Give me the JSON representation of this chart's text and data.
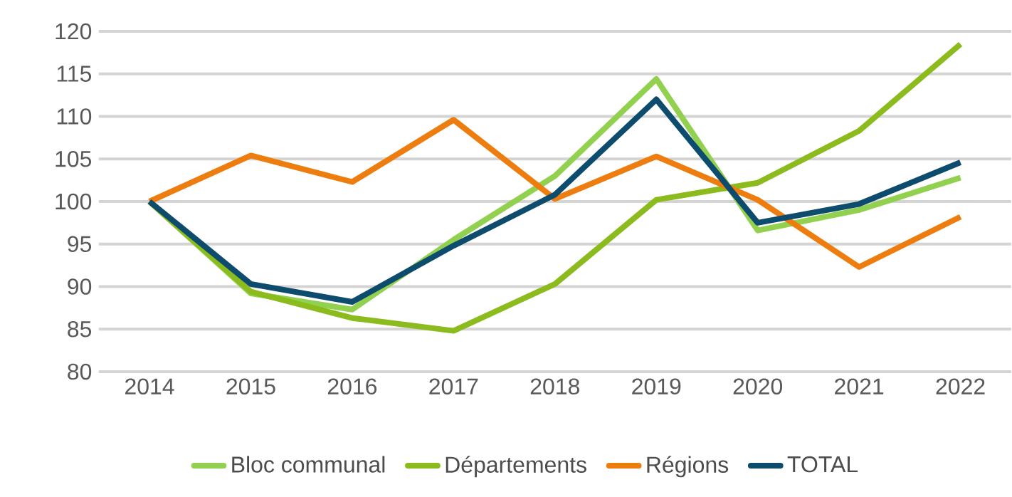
{
  "chart_data": {
    "type": "line",
    "categories": [
      "2014",
      "2015",
      "2016",
      "2017",
      "2018",
      "2019",
      "2020",
      "2021",
      "2022"
    ],
    "series": [
      {
        "name": "Bloc communal",
        "color": "#92d050",
        "values": [
          100,
          89.2,
          87.3,
          95.5,
          103,
          114.4,
          96.6,
          99,
          102.8
        ]
      },
      {
        "name": "Départements",
        "color": "#8cbb1d",
        "values": [
          100,
          89.4,
          86.3,
          84.8,
          90.3,
          100.2,
          102.2,
          108.3,
          118.5
        ]
      },
      {
        "name": "Régions",
        "color": "#ed7d0e",
        "values": [
          100,
          105.4,
          102.3,
          109.6,
          100.3,
          105.3,
          100.2,
          92.3,
          98.2
        ]
      },
      {
        "name": "TOTAL",
        "color": "#0e4c6e",
        "values": [
          100,
          90.3,
          88.2,
          94.8,
          100.8,
          112,
          97.5,
          99.7,
          104.6
        ]
      }
    ],
    "ylim": [
      80,
      120
    ],
    "yticks": [
      80,
      85,
      90,
      95,
      100,
      105,
      110,
      115,
      120
    ],
    "grid": "y",
    "legend": "bottom",
    "marker": "none",
    "line_style": "solid"
  }
}
